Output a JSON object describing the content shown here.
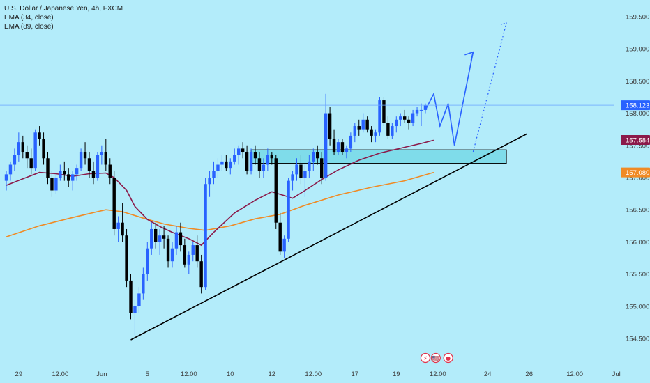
{
  "chart_data": {
    "type": "candlestick",
    "symbol_title": "U.S. Dollar / Japanese Yen, 4h, FXCM",
    "indicators": [
      {
        "label": "EMA (34, close)",
        "color": "#8b1a4a",
        "last_value": "157.584"
      },
      {
        "label": "EMA (89, close)",
        "color": "#f08a24",
        "last_value": "157.080"
      }
    ],
    "price_label": {
      "value": 158.123,
      "text": "158.123",
      "color": "#2962ff"
    },
    "ylim": [
      154.35,
      159.65
    ],
    "y_ticks": [
      "154.500",
      "155.000",
      "155.500",
      "156.000",
      "156.500",
      "157.000",
      "157.500",
      "158.000",
      "158.500",
      "159.000",
      "159.500"
    ],
    "y_tick_values": [
      154.5,
      155.0,
      155.5,
      156.0,
      156.5,
      157.0,
      157.5,
      158.0,
      158.5,
      159.0,
      159.5
    ],
    "x_ticks": [
      {
        "label": "29",
        "bar": 3
      },
      {
        "label": "12:00",
        "bar": 13
      },
      {
        "label": "Jun",
        "bar": 23
      },
      {
        "label": "5",
        "bar": 34
      },
      {
        "label": "12:00",
        "bar": 44
      },
      {
        "label": "10",
        "bar": 54
      },
      {
        "label": "12",
        "bar": 64
      },
      {
        "label": "12:00",
        "bar": 74
      },
      {
        "label": "17",
        "bar": 84
      },
      {
        "label": "19",
        "bar": 94
      },
      {
        "label": "12:00",
        "bar": 104
      },
      {
        "label": "24",
        "bar": 116
      },
      {
        "label": "26",
        "bar": 126
      },
      {
        "label": "12:00",
        "bar": 137
      },
      {
        "label": "Jul",
        "bar": 147
      }
    ],
    "colors": {
      "up": "#2962ff",
      "down": "#000000",
      "background": "#b3ecfa"
    },
    "candles": [
      [
        156.95,
        157.1,
        156.8,
        157.05
      ],
      [
        157.05,
        157.25,
        156.95,
        157.2
      ],
      [
        157.2,
        157.45,
        157.1,
        157.35
      ],
      [
        157.35,
        157.7,
        157.25,
        157.55
      ],
      [
        157.55,
        157.65,
        157.3,
        157.4
      ],
      [
        157.4,
        157.5,
        157.15,
        157.3
      ],
      [
        157.3,
        157.45,
        157.05,
        157.15
      ],
      [
        157.15,
        157.75,
        157.1,
        157.7
      ],
      [
        157.7,
        157.8,
        157.5,
        157.6
      ],
      [
        157.6,
        157.7,
        157.2,
        157.3
      ],
      [
        157.3,
        157.4,
        156.9,
        157.0
      ],
      [
        157.0,
        157.1,
        156.7,
        156.8
      ],
      [
        156.8,
        157.05,
        156.75,
        157.0
      ],
      [
        157.0,
        157.2,
        156.95,
        157.1
      ],
      [
        157.1,
        157.25,
        156.95,
        157.05
      ],
      [
        157.05,
        157.15,
        156.85,
        156.95
      ],
      [
        156.95,
        157.1,
        156.8,
        157.05
      ],
      [
        157.05,
        157.2,
        156.95,
        157.15
      ],
      [
        157.15,
        157.45,
        157.1,
        157.4
      ],
      [
        157.4,
        157.55,
        157.2,
        157.3
      ],
      [
        157.3,
        157.4,
        157.0,
        157.1
      ],
      [
        157.1,
        157.25,
        156.9,
        157.0
      ],
      [
        157.0,
        157.4,
        156.95,
        157.35
      ],
      [
        157.35,
        157.5,
        157.2,
        157.4
      ],
      [
        157.4,
        157.6,
        157.1,
        157.2
      ],
      [
        157.2,
        157.3,
        156.9,
        157.0
      ],
      [
        157.0,
        157.1,
        156.1,
        156.2
      ],
      [
        156.2,
        156.4,
        156.0,
        156.3
      ],
      [
        156.3,
        156.6,
        156.0,
        156.1
      ],
      [
        156.1,
        156.2,
        155.3,
        155.4
      ],
      [
        155.4,
        155.5,
        154.8,
        154.9
      ],
      [
        154.9,
        155.1,
        154.55,
        155.0
      ],
      [
        155.0,
        155.3,
        154.9,
        155.2
      ],
      [
        155.2,
        155.6,
        155.1,
        155.5
      ],
      [
        155.5,
        156.0,
        155.4,
        155.9
      ],
      [
        155.9,
        156.3,
        155.8,
        156.2
      ],
      [
        156.2,
        156.3,
        155.9,
        156.0
      ],
      [
        156.0,
        156.2,
        155.8,
        156.1
      ],
      [
        156.1,
        156.25,
        155.9,
        156.05
      ],
      [
        156.05,
        156.1,
        155.6,
        155.7
      ],
      [
        155.7,
        156.0,
        155.6,
        155.9
      ],
      [
        155.9,
        156.25,
        155.8,
        156.15
      ],
      [
        156.15,
        156.3,
        155.85,
        155.95
      ],
      [
        155.95,
        156.05,
        155.6,
        155.65
      ],
      [
        155.65,
        155.85,
        155.5,
        155.8
      ],
      [
        155.8,
        156.0,
        155.7,
        155.95
      ],
      [
        155.95,
        156.1,
        155.6,
        155.7
      ],
      [
        155.7,
        155.8,
        155.2,
        155.3
      ],
      [
        155.3,
        157.0,
        155.25,
        156.9
      ],
      [
        156.9,
        157.1,
        156.7,
        157.0
      ],
      [
        157.0,
        157.25,
        156.9,
        157.1
      ],
      [
        157.1,
        157.3,
        157.0,
        157.2
      ],
      [
        157.2,
        157.35,
        157.1,
        157.25
      ],
      [
        157.25,
        157.35,
        157.1,
        157.15
      ],
      [
        157.15,
        157.3,
        157.05,
        157.25
      ],
      [
        157.25,
        157.45,
        157.2,
        157.35
      ],
      [
        157.35,
        157.5,
        157.2,
        157.45
      ],
      [
        157.45,
        157.55,
        157.3,
        157.4
      ],
      [
        157.4,
        157.5,
        157.05,
        157.1
      ],
      [
        157.1,
        157.45,
        157.05,
        157.4
      ],
      [
        157.4,
        157.5,
        157.2,
        157.3
      ],
      [
        157.3,
        157.4,
        157.0,
        157.1
      ],
      [
        157.1,
        157.3,
        157.0,
        157.2
      ],
      [
        157.2,
        157.45,
        157.1,
        157.35
      ],
      [
        157.35,
        157.4,
        157.2,
        157.3
      ],
      [
        157.3,
        157.35,
        156.2,
        156.3
      ],
      [
        156.3,
        156.45,
        155.8,
        155.85
      ],
      [
        155.85,
        156.1,
        155.75,
        156.05
      ],
      [
        156.05,
        157.0,
        156.0,
        156.95
      ],
      [
        156.95,
        157.1,
        156.8,
        157.05
      ],
      [
        157.05,
        157.3,
        156.95,
        157.2
      ],
      [
        157.2,
        157.35,
        156.9,
        157.0
      ],
      [
        157.0,
        157.2,
        156.7,
        157.1
      ],
      [
        157.1,
        157.35,
        157.0,
        157.25
      ],
      [
        157.25,
        157.45,
        157.1,
        157.4
      ],
      [
        157.4,
        157.5,
        157.2,
        157.3
      ],
      [
        157.3,
        157.4,
        156.9,
        157.0
      ],
      [
        157.0,
        158.3,
        156.95,
        158.0
      ],
      [
        158.0,
        158.1,
        157.5,
        157.6
      ],
      [
        157.6,
        157.75,
        157.35,
        157.4
      ],
      [
        157.4,
        157.6,
        157.35,
        157.55
      ],
      [
        157.55,
        157.6,
        157.35,
        157.4
      ],
      [
        157.4,
        157.5,
        157.3,
        157.45
      ],
      [
        157.45,
        157.7,
        157.4,
        157.65
      ],
      [
        157.65,
        157.85,
        157.55,
        157.8
      ],
      [
        157.8,
        157.9,
        157.65,
        157.75
      ],
      [
        157.75,
        158.0,
        157.7,
        157.9
      ],
      [
        157.9,
        157.95,
        157.7,
        157.75
      ],
      [
        157.75,
        157.8,
        157.55,
        157.65
      ],
      [
        157.65,
        157.75,
        157.55,
        157.7
      ],
      [
        157.7,
        158.25,
        157.65,
        158.2
      ],
      [
        158.2,
        158.25,
        157.8,
        157.85
      ],
      [
        157.85,
        157.95,
        157.6,
        157.65
      ],
      [
        157.65,
        157.85,
        157.6,
        157.8
      ],
      [
        157.8,
        157.95,
        157.7,
        157.9
      ],
      [
        157.9,
        158.0,
        157.8,
        157.95
      ],
      [
        157.95,
        158.05,
        157.85,
        157.9
      ],
      [
        157.9,
        157.95,
        157.75,
        157.85
      ],
      [
        157.85,
        158.05,
        157.8,
        158.0
      ],
      [
        158.0,
        158.1,
        157.95,
        158.05
      ],
      [
        158.05,
        158.15,
        157.8,
        158.05
      ],
      [
        158.05,
        158.15,
        158.0,
        158.12
      ]
    ],
    "ema34": [
      [
        0,
        156.88
      ],
      [
        4,
        156.98
      ],
      [
        8,
        157.08
      ],
      [
        12,
        157.06
      ],
      [
        16,
        157.02
      ],
      [
        20,
        157.06
      ],
      [
        24,
        157.07
      ],
      [
        26,
        157.0
      ],
      [
        29,
        156.8
      ],
      [
        31,
        156.55
      ],
      [
        34,
        156.35
      ],
      [
        37,
        156.24
      ],
      [
        40,
        156.15
      ],
      [
        44,
        156.05
      ],
      [
        47,
        155.95
      ],
      [
        50,
        156.15
      ],
      [
        55,
        156.45
      ],
      [
        60,
        156.65
      ],
      [
        64,
        156.78
      ],
      [
        67,
        156.72
      ],
      [
        69,
        156.68
      ],
      [
        72,
        156.8
      ],
      [
        76,
        156.97
      ],
      [
        80,
        157.12
      ],
      [
        85,
        157.27
      ],
      [
        90,
        157.38
      ],
      [
        96,
        157.47
      ],
      [
        100,
        157.53
      ],
      [
        103,
        157.58
      ]
    ],
    "ema89": [
      [
        0,
        156.08
      ],
      [
        8,
        156.25
      ],
      [
        16,
        156.38
      ],
      [
        24,
        156.5
      ],
      [
        28,
        156.47
      ],
      [
        33,
        156.37
      ],
      [
        38,
        156.28
      ],
      [
        44,
        156.21
      ],
      [
        48,
        156.18
      ],
      [
        54,
        156.25
      ],
      [
        60,
        156.36
      ],
      [
        66,
        156.43
      ],
      [
        72,
        156.57
      ],
      [
        80,
        156.73
      ],
      [
        88,
        156.85
      ],
      [
        96,
        156.95
      ],
      [
        103,
        157.08
      ]
    ],
    "annotations": {
      "zone": {
        "x0": 59,
        "x1": 120.5,
        "y0": 157.22,
        "y1": 157.43
      },
      "trendline": {
        "x0": 30,
        "y0": 154.48,
        "x1": 125.5,
        "y1": 157.68
      },
      "projection_solid": [
        [
          101,
          158.05
        ],
        [
          103,
          158.3
        ],
        [
          104.5,
          157.8
        ],
        [
          106.5,
          158.15
        ],
        [
          108,
          157.5
        ],
        [
          112.5,
          158.95
        ]
      ],
      "arrow_head_solid": [
        112.5,
        158.95
      ],
      "projection_dotted": [
        [
          112.5,
          157.4
        ],
        [
          120.5,
          159.4
        ]
      ]
    },
    "event_markers": [
      {
        "icon": "bolt-icon",
        "symbol": "⚡",
        "bar": 101,
        "color": "#e0344c"
      },
      {
        "icon": "us-flag-icon",
        "symbol": "🇺🇸",
        "bar": 103.5,
        "color": "#e0344c"
      },
      {
        "icon": "record-icon",
        "symbol": "●",
        "bar": 106.5,
        "color": "#e0344c"
      }
    ]
  }
}
